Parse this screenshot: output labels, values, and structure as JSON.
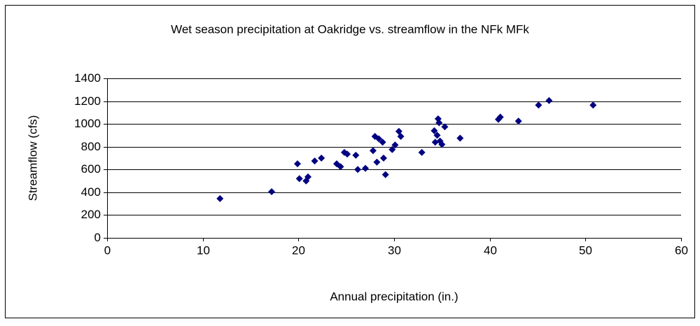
{
  "chart_data": {
    "type": "scatter",
    "title": "Wet season precipitation at Oakridge vs. streamflow in the NFk MFk",
    "xlabel": "Annual precipitation (in.)",
    "ylabel": "Streamflow (cfs)",
    "xlim": [
      0,
      60
    ],
    "xticks": [
      0,
      10,
      20,
      30,
      40,
      50,
      60
    ],
    "ylim": [
      0,
      1400
    ],
    "yticks": [
      0,
      200,
      400,
      600,
      800,
      1000,
      1200,
      1400
    ],
    "grid": true,
    "series": [
      {
        "color": "#000080",
        "x": [
          11.8,
          17.2,
          19.9,
          20.1,
          20.8,
          21.0,
          21.7,
          22.4,
          24.0,
          24.4,
          24.8,
          25.1,
          26.0,
          26.2,
          27.0,
          27.8,
          28.0,
          28.2,
          28.4,
          28.8,
          28.9,
          29.1,
          29.8,
          30.1,
          30.5,
          30.7,
          32.9,
          34.2,
          34.3,
          34.5,
          34.6,
          34.7,
          34.8,
          35.0,
          35.3,
          36.9,
          40.9,
          41.1,
          43.0,
          45.1,
          46.2,
          50.8
        ],
        "values": [
          345,
          405,
          650,
          520,
          500,
          535,
          675,
          700,
          650,
          625,
          750,
          735,
          725,
          600,
          610,
          765,
          890,
          665,
          870,
          840,
          700,
          555,
          775,
          815,
          935,
          890,
          750,
          940,
          840,
          900,
          1045,
          1010,
          850,
          820,
          975,
          875,
          1040,
          1060,
          1025,
          1165,
          1205,
          1165
        ]
      }
    ]
  }
}
